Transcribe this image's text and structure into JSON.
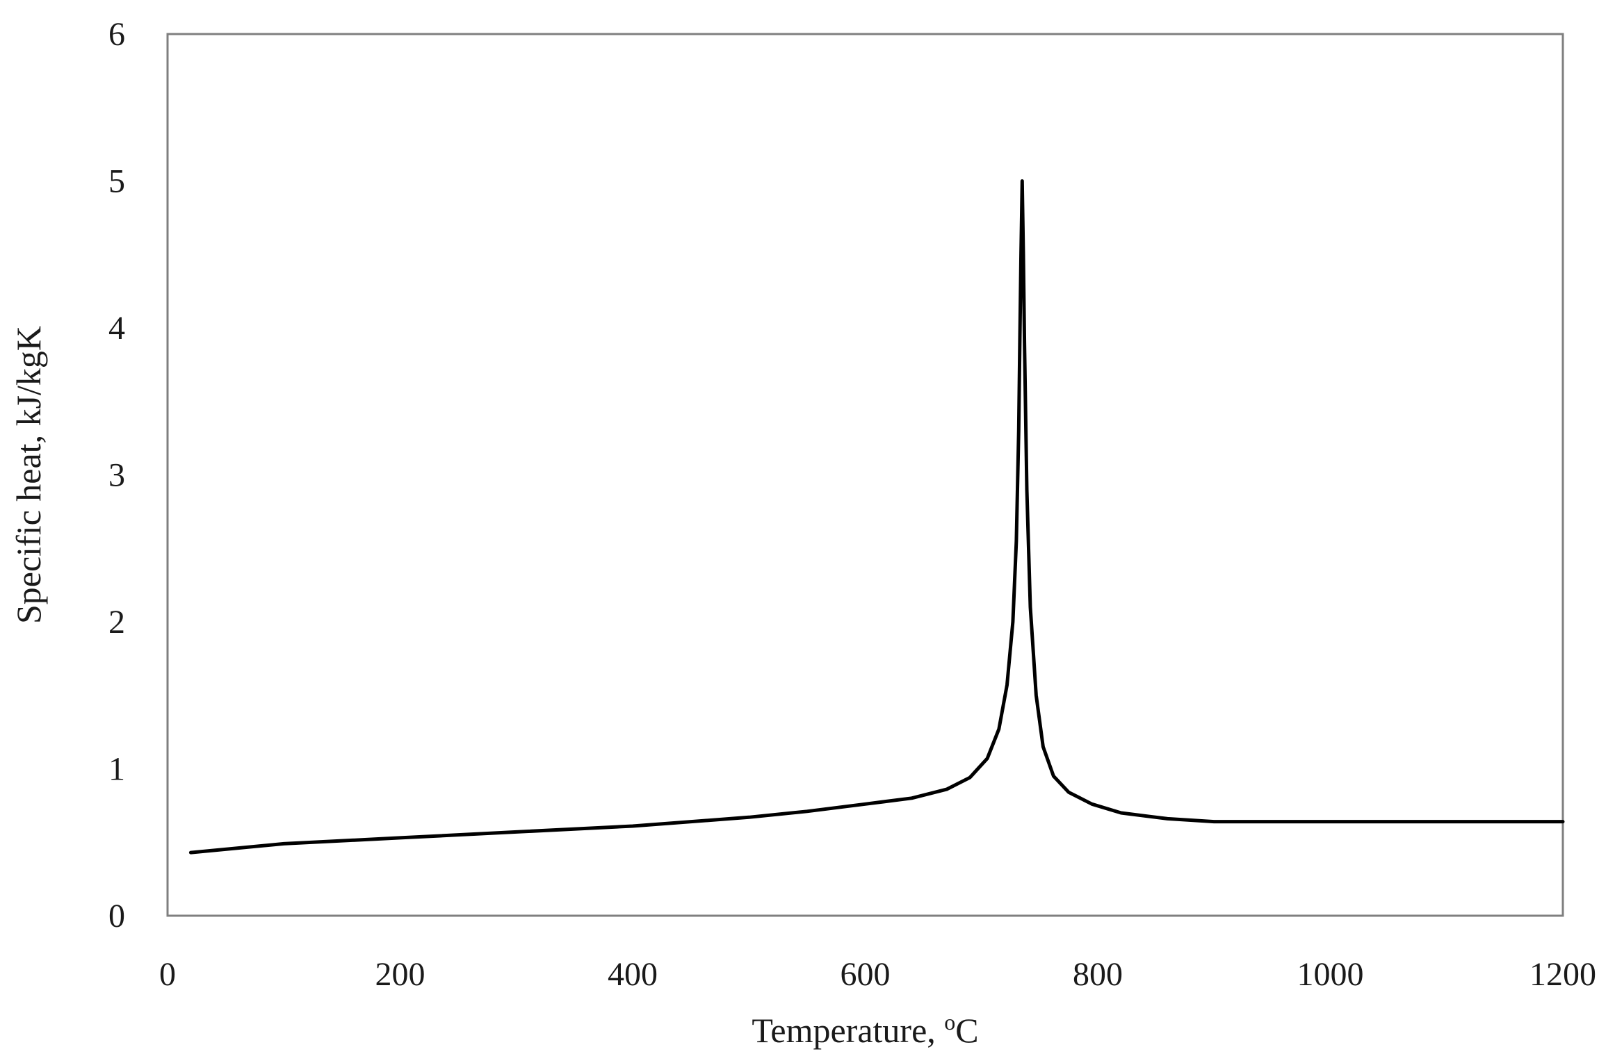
{
  "chart_data": {
    "type": "line",
    "title": "",
    "xlabel": "Temperature, ",
    "xlabel_superscript": "o",
    "xlabel_unit": "C",
    "ylabel": "Specific heat, kJ/kgK",
    "xlim": [
      0,
      1200
    ],
    "ylim": [
      0,
      6
    ],
    "xticks": [
      0,
      200,
      400,
      600,
      800,
      1000,
      1200
    ],
    "yticks": [
      0,
      1,
      2,
      3,
      4,
      5,
      6
    ],
    "grid": false,
    "legend": "none",
    "line_color": "#000000",
    "series": [
      {
        "x": [
          20,
          100,
          200,
          300,
          400,
          500,
          550,
          600,
          640,
          670,
          690,
          705,
          715,
          722,
          727,
          730,
          732,
          733,
          734,
          735,
          736,
          737,
          739,
          742,
          747,
          753,
          762,
          775,
          795,
          820,
          860,
          900,
          950,
          1000,
          1100,
          1200
        ],
        "y": [
          0.43,
          0.49,
          0.53,
          0.57,
          0.61,
          0.67,
          0.71,
          0.76,
          0.8,
          0.86,
          0.94,
          1.07,
          1.27,
          1.57,
          2.0,
          2.55,
          3.3,
          3.9,
          4.5,
          5.0,
          4.5,
          3.9,
          2.9,
          2.1,
          1.5,
          1.15,
          0.95,
          0.84,
          0.76,
          0.7,
          0.66,
          0.64,
          0.64,
          0.64,
          0.64,
          0.64
        ]
      }
    ]
  }
}
